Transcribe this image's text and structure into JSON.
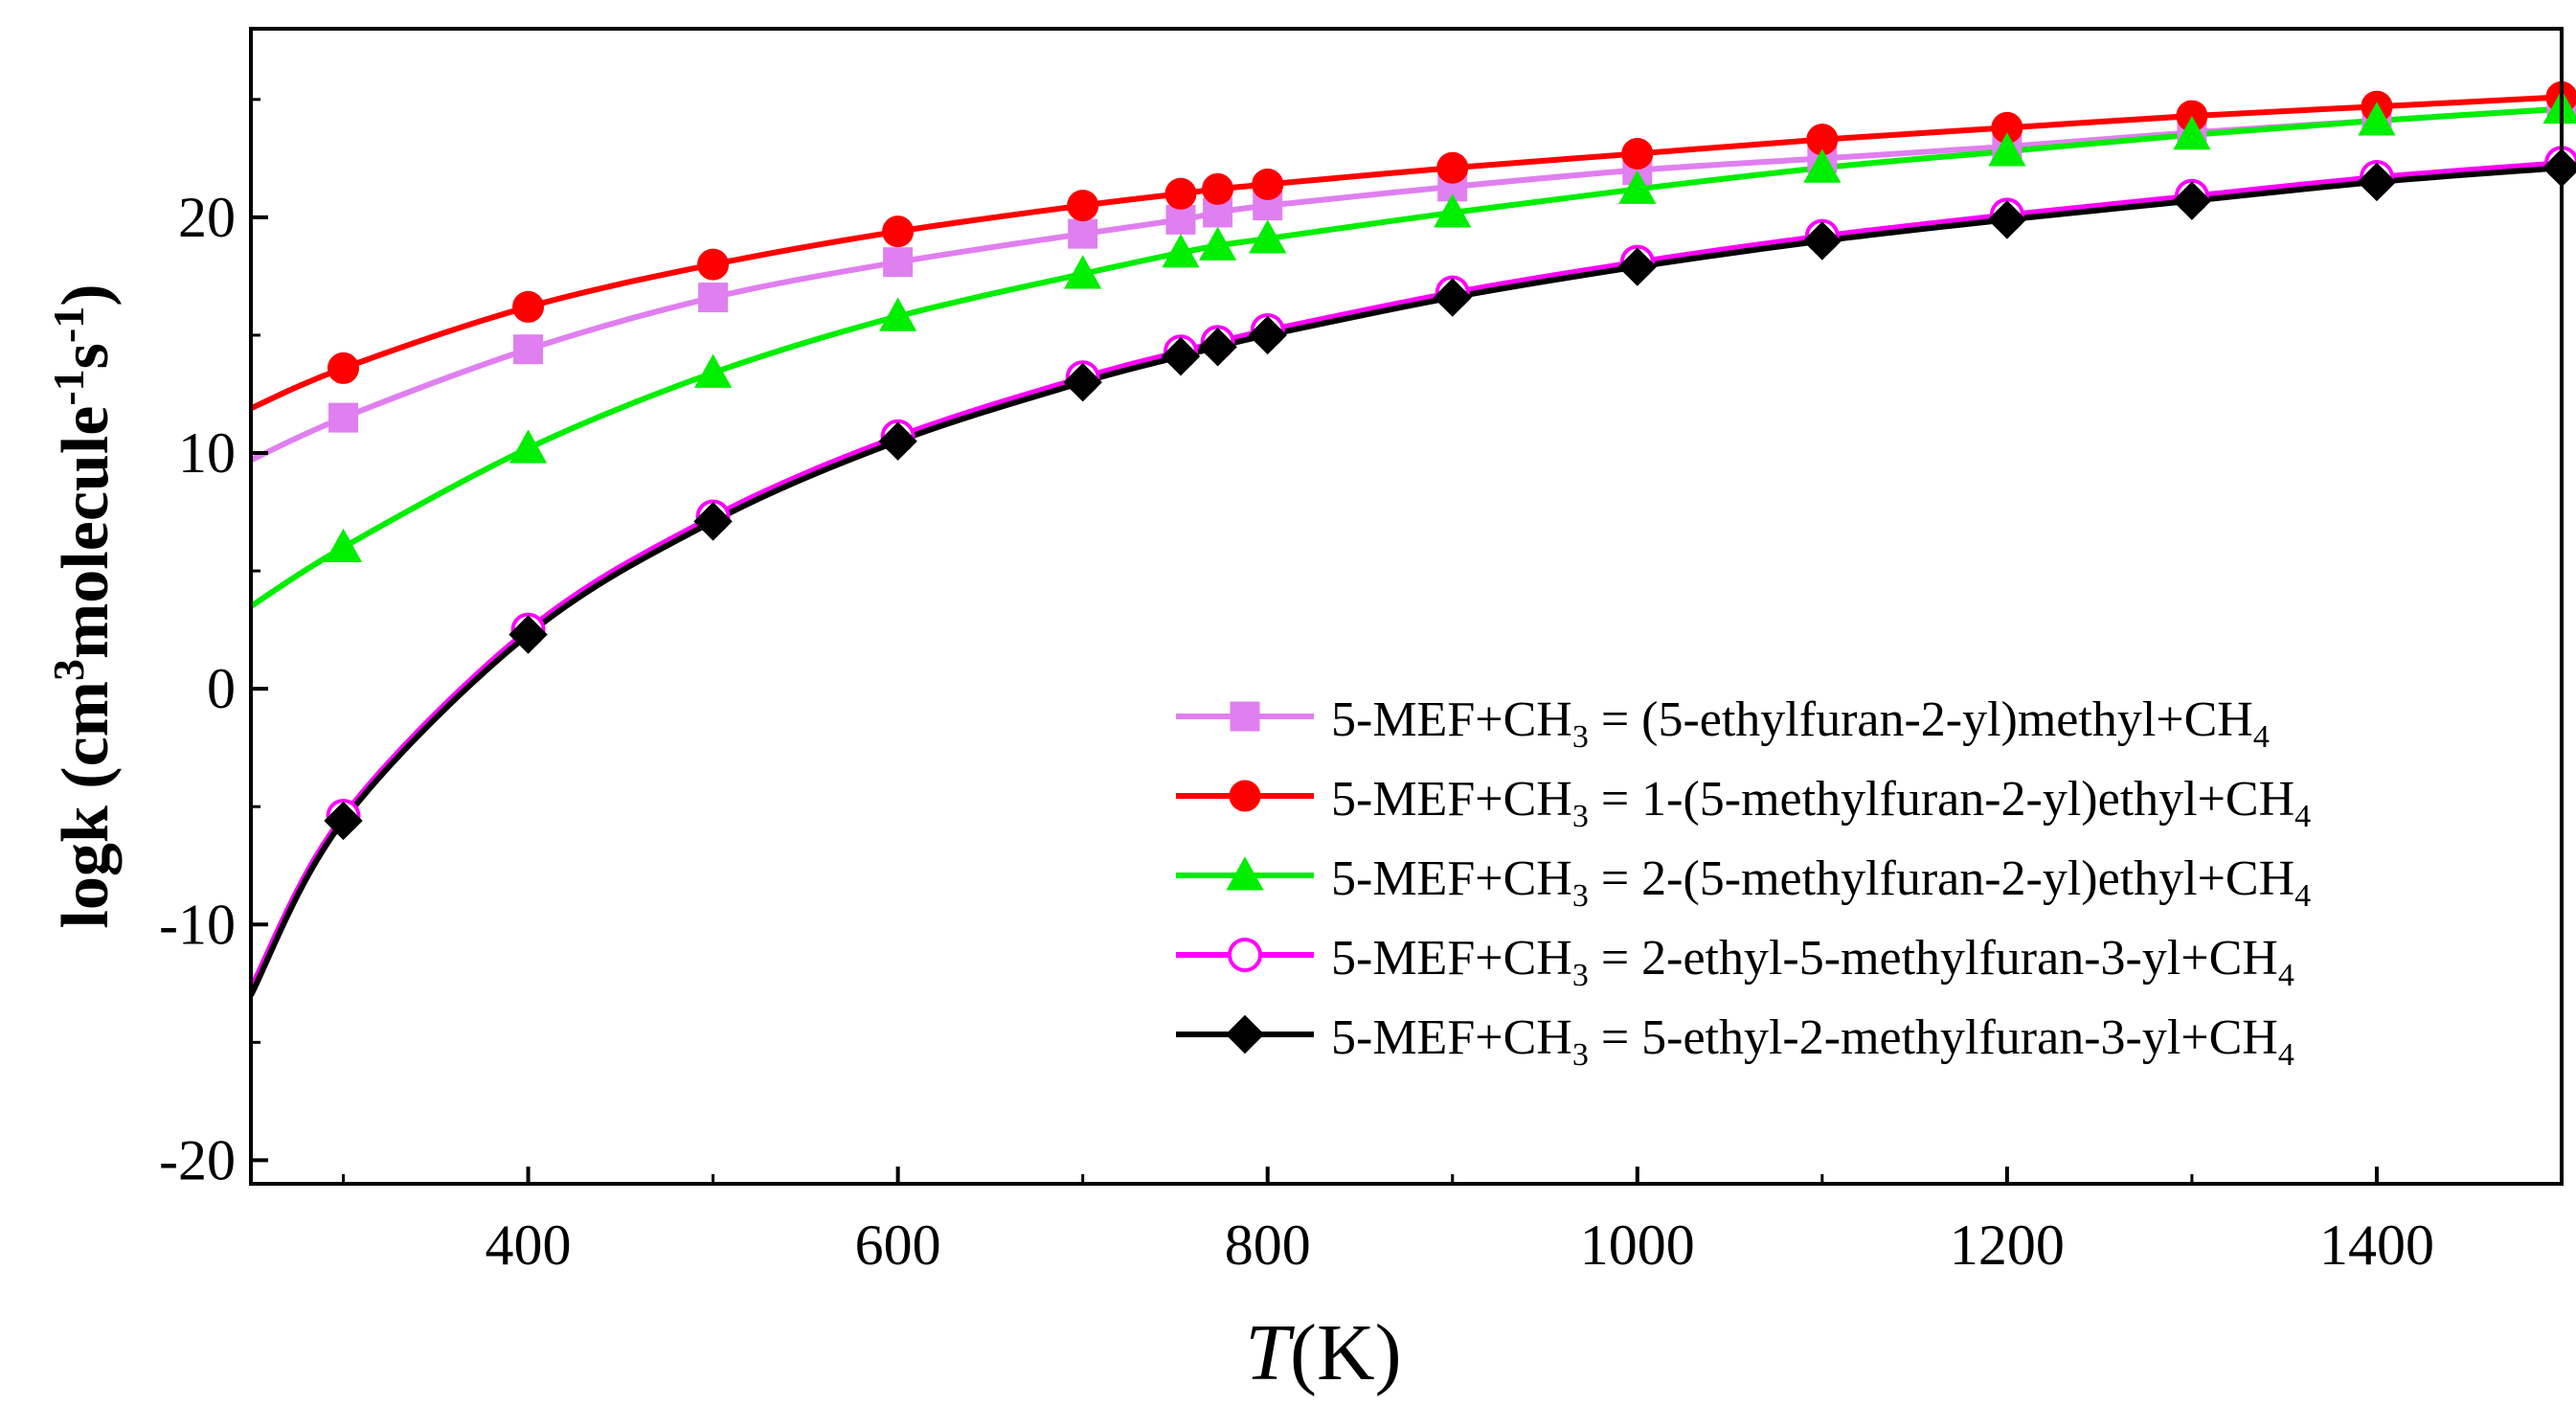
{
  "chart_data": {
    "type": "line",
    "title": "",
    "xlabel": "T(K)",
    "ylabel": "logk (cm3molecule-1s-1)",
    "xlabel_parts": {
      "main": "T",
      "unit": "(K)"
    },
    "ylabel_parts": {
      "prefix": "logk (cm",
      "sup1": "3",
      "mid": "molecule",
      "sup2": "-1",
      "s": "s",
      "sup3": "-1",
      "suffix": ")"
    },
    "xlim": [
      250,
      1500
    ],
    "ylim": [
      -21,
      28
    ],
    "xticks": [
      400,
      600,
      800,
      1000,
      1200,
      1400
    ],
    "yticks": [
      -20,
      -10,
      0,
      10,
      20
    ],
    "x": [
      300,
      400,
      500,
      600,
      700,
      753,
      773,
      800,
      900,
      1000,
      1100,
      1200,
      1300,
      1400,
      1500
    ],
    "curve_start_x": 250,
    "legend_position": "center-right",
    "series": [
      {
        "name": "5-MEF+CH3 = (5-ethylfuran-2-yl)methyl+CH4",
        "label_pre": "5-MEF+CH",
        "sub1": "3",
        "label_mid": " = (5-ethylfuran-2-yl)methyl+CH",
        "sub2": "4",
        "color": "#e07ff0",
        "marker": "square",
        "filled": true,
        "start_value": 9.7,
        "values": [
          11.5,
          14.4,
          16.6,
          18.1,
          19.3,
          19.9,
          20.2,
          20.5,
          21.3,
          22.0,
          22.5,
          23.0,
          23.6,
          24.1,
          24.6
        ]
      },
      {
        "name": "5-MEF+CH3 = 1-(5-methylfuran-2-yl)ethyl+CH4",
        "label_pre": "5-MEF+CH",
        "sub1": "3",
        "label_mid": " = 1-(5-methylfuran-2-yl)ethyl+CH",
        "sub2": "4",
        "color": "#ff0000",
        "marker": "circle",
        "filled": true,
        "start_value": 11.9,
        "values": [
          13.6,
          16.2,
          18.0,
          19.4,
          20.5,
          21.0,
          21.2,
          21.4,
          22.1,
          22.7,
          23.3,
          23.8,
          24.3,
          24.7,
          25.1
        ]
      },
      {
        "name": "5-MEF+CH3 = 2-(5-methylfuran-2-yl)ethyl+CH4",
        "label_pre": "5-MEF+CH",
        "sub1": "3",
        "label_mid": " = 2-(5-methylfuran-2-yl)ethyl+CH",
        "sub2": "4",
        "color": "#00ee00",
        "marker": "triangle",
        "filled": true,
        "start_value": 3.5,
        "values": [
          6.0,
          10.2,
          13.4,
          15.8,
          17.6,
          18.5,
          18.8,
          19.1,
          20.2,
          21.2,
          22.1,
          22.8,
          23.5,
          24.1,
          24.6
        ]
      },
      {
        "name": "5-MEF+CH3 = 2-ethyl-5-methylfuran-3-yl+CH4",
        "label_pre": "5-MEF+CH",
        "sub1": "3",
        "label_mid": " = 2-ethyl-5-methylfuran-3-yl+CH",
        "sub2": "4",
        "color": "#ff00ff",
        "marker": "circle",
        "filled": false,
        "start_value": -12.7,
        "values": [
          -5.4,
          2.5,
          7.3,
          10.7,
          13.2,
          14.3,
          14.7,
          15.2,
          16.8,
          18.1,
          19.2,
          20.1,
          20.9,
          21.7,
          22.3
        ]
      },
      {
        "name": "5-MEF+CH3 = 5-ethyl-2-methylfuran-3-yl+CH4",
        "label_pre": "5-MEF+CH",
        "sub1": "3",
        "label_mid": " = 5-ethyl-2-methylfuran-3-yl+CH",
        "sub2": "4",
        "color": "#000000",
        "marker": "diamond",
        "filled": true,
        "start_value": -13.0,
        "values": [
          -5.6,
          2.3,
          7.1,
          10.5,
          13.0,
          14.1,
          14.5,
          15.0,
          16.6,
          17.9,
          19.0,
          19.9,
          20.7,
          21.5,
          22.1
        ]
      }
    ]
  }
}
